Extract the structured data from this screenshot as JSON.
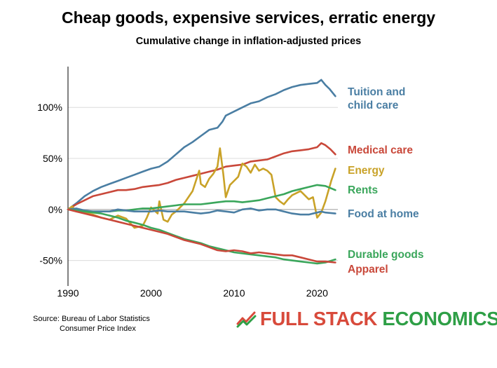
{
  "chart_data": {
    "type": "line",
    "title": "Cheap goods, expensive services, erratic energy",
    "subtitle": "Cumulative change in inflation-adjusted prices",
    "xlabel": "",
    "ylabel": "",
    "xlim": [
      1990,
      2022.5
    ],
    "ylim": [
      -75,
      140
    ],
    "x_ticks": [
      1990,
      2000,
      2010,
      2020
    ],
    "x_tick_labels": [
      "1990",
      "2000",
      "2010",
      "2020"
    ],
    "y_ticks": [
      -50,
      0,
      50,
      100
    ],
    "y_tick_labels": [
      "-50%",
      "0%",
      "50%",
      "100%"
    ],
    "grid": "horizontal",
    "legend": "labels at right end of lines",
    "series": [
      {
        "name": "Tuition and child care",
        "label_lines": [
          "Tuition and",
          "child care"
        ],
        "color": "#4a7ea3",
        "points": [
          [
            1990,
            0
          ],
          [
            1991,
            6
          ],
          [
            1992,
            13
          ],
          [
            1993,
            18
          ],
          [
            1994,
            22
          ],
          [
            1995,
            25
          ],
          [
            1996,
            28
          ],
          [
            1997,
            31
          ],
          [
            1998,
            34
          ],
          [
            1999,
            37
          ],
          [
            2000,
            40
          ],
          [
            2001,
            42
          ],
          [
            2002,
            47
          ],
          [
            2003,
            54
          ],
          [
            2004,
            61
          ],
          [
            2005,
            66
          ],
          [
            2006,
            72
          ],
          [
            2007,
            78
          ],
          [
            2008,
            80
          ],
          [
            2008.6,
            86
          ],
          [
            2009,
            92
          ],
          [
            2010,
            96
          ],
          [
            2011,
            100
          ],
          [
            2012,
            104
          ],
          [
            2013,
            106
          ],
          [
            2014,
            110
          ],
          [
            2015,
            113
          ],
          [
            2016,
            117
          ],
          [
            2017,
            120
          ],
          [
            2018,
            122
          ],
          [
            2019,
            123
          ],
          [
            2020,
            124
          ],
          [
            2020.5,
            127
          ],
          [
            2021,
            122
          ],
          [
            2021.5,
            118
          ],
          [
            2022.2,
            111
          ]
        ]
      },
      {
        "name": "Medical care",
        "label_lines": [
          "Medical care"
        ],
        "color": "#c9483a",
        "points": [
          [
            1990,
            0
          ],
          [
            1991,
            5
          ],
          [
            1992,
            9
          ],
          [
            1993,
            13
          ],
          [
            1994,
            15
          ],
          [
            1995,
            17
          ],
          [
            1996,
            19
          ],
          [
            1997,
            19
          ],
          [
            1998,
            20
          ],
          [
            1999,
            22
          ],
          [
            2000,
            23
          ],
          [
            2001,
            24
          ],
          [
            2002,
            26
          ],
          [
            2003,
            29
          ],
          [
            2004,
            31
          ],
          [
            2005,
            33
          ],
          [
            2006,
            35
          ],
          [
            2007,
            37
          ],
          [
            2008,
            39
          ],
          [
            2009,
            42
          ],
          [
            2010,
            43
          ],
          [
            2011,
            44
          ],
          [
            2012,
            47
          ],
          [
            2013,
            48
          ],
          [
            2014,
            49
          ],
          [
            2015,
            52
          ],
          [
            2016,
            55
          ],
          [
            2017,
            57
          ],
          [
            2018,
            58
          ],
          [
            2019,
            59
          ],
          [
            2020,
            61
          ],
          [
            2020.5,
            65
          ],
          [
            2021,
            63
          ],
          [
            2021.6,
            59
          ],
          [
            2022.2,
            54
          ]
        ]
      },
      {
        "name": "Energy",
        "label_lines": [
          "Energy"
        ],
        "color": "#c9a228",
        "points": [
          [
            1990,
            0
          ],
          [
            1990.5,
            3
          ],
          [
            1991,
            -2
          ],
          [
            1992,
            -3
          ],
          [
            1993,
            -5
          ],
          [
            1994,
            -8
          ],
          [
            1995,
            -10
          ],
          [
            1996,
            -6
          ],
          [
            1997,
            -9
          ],
          [
            1998,
            -18
          ],
          [
            1999,
            -16
          ],
          [
            1999.5,
            -8
          ],
          [
            2000,
            2
          ],
          [
            2000.8,
            -4
          ],
          [
            2001,
            8
          ],
          [
            2001.5,
            -10
          ],
          [
            2002,
            -12
          ],
          [
            2002.5,
            -5
          ],
          [
            2003,
            -2
          ],
          [
            2003.5,
            2
          ],
          [
            2004,
            6
          ],
          [
            2005,
            18
          ],
          [
            2005.8,
            38
          ],
          [
            2006,
            25
          ],
          [
            2006.5,
            22
          ],
          [
            2007,
            30
          ],
          [
            2007.5,
            35
          ],
          [
            2008,
            42
          ],
          [
            2008.3,
            60
          ],
          [
            2008.7,
            35
          ],
          [
            2009,
            12
          ],
          [
            2009.5,
            24
          ],
          [
            2010,
            28
          ],
          [
            2010.5,
            32
          ],
          [
            2011,
            45
          ],
          [
            2011.5,
            42
          ],
          [
            2012,
            36
          ],
          [
            2012.5,
            44
          ],
          [
            2013,
            38
          ],
          [
            2013.5,
            40
          ],
          [
            2014,
            38
          ],
          [
            2014.5,
            34
          ],
          [
            2015,
            12
          ],
          [
            2015.5,
            8
          ],
          [
            2016,
            5
          ],
          [
            2016.5,
            10
          ],
          [
            2017,
            14
          ],
          [
            2018,
            18
          ],
          [
            2019,
            10
          ],
          [
            2019.5,
            12
          ],
          [
            2020,
            -8
          ],
          [
            2020.5,
            -3
          ],
          [
            2021,
            8
          ],
          [
            2021.7,
            28
          ],
          [
            2022.2,
            40
          ]
        ]
      },
      {
        "name": "Rents",
        "label_lines": [
          "Rents"
        ],
        "color": "#3aa65b",
        "points": [
          [
            1990,
            0
          ],
          [
            1991,
            -1
          ],
          [
            1992,
            -2
          ],
          [
            1993,
            -2
          ],
          [
            1994,
            -2
          ],
          [
            1995,
            -2
          ],
          [
            1996,
            -1
          ],
          [
            1997,
            -1
          ],
          [
            1998,
            0
          ],
          [
            1999,
            1
          ],
          [
            2000,
            1
          ],
          [
            2001,
            2
          ],
          [
            2002,
            3
          ],
          [
            2003,
            4
          ],
          [
            2004,
            5
          ],
          [
            2005,
            5
          ],
          [
            2006,
            5
          ],
          [
            2007,
            6
          ],
          [
            2008,
            7
          ],
          [
            2009,
            8
          ],
          [
            2010,
            8
          ],
          [
            2011,
            7
          ],
          [
            2012,
            8
          ],
          [
            2013,
            9
          ],
          [
            2014,
            11
          ],
          [
            2015,
            13
          ],
          [
            2016,
            15
          ],
          [
            2017,
            18
          ],
          [
            2018,
            20
          ],
          [
            2019,
            22
          ],
          [
            2020,
            24
          ],
          [
            2021,
            23
          ],
          [
            2022.2,
            19
          ]
        ]
      },
      {
        "name": "Food at home",
        "label_lines": [
          "Food at home"
        ],
        "color": "#4a7ea3",
        "points": [
          [
            1990,
            0
          ],
          [
            1991,
            1
          ],
          [
            1992,
            -1
          ],
          [
            1993,
            -2
          ],
          [
            1994,
            -2
          ],
          [
            1995,
            -2
          ],
          [
            1996,
            0
          ],
          [
            1997,
            -1
          ],
          [
            1998,
            -2
          ],
          [
            1999,
            -2
          ],
          [
            2000,
            -2
          ],
          [
            2001,
            -1
          ],
          [
            2002,
            -2
          ],
          [
            2003,
            -2
          ],
          [
            2004,
            -2
          ],
          [
            2005,
            -3
          ],
          [
            2006,
            -4
          ],
          [
            2007,
            -3
          ],
          [
            2008,
            -1
          ],
          [
            2009,
            -2
          ],
          [
            2010,
            -3
          ],
          [
            2011,
            0
          ],
          [
            2012,
            1
          ],
          [
            2013,
            -1
          ],
          [
            2014,
            0
          ],
          [
            2015,
            0
          ],
          [
            2016,
            -2
          ],
          [
            2017,
            -4
          ],
          [
            2018,
            -5
          ],
          [
            2019,
            -5
          ],
          [
            2020,
            -3
          ],
          [
            2020.5,
            -2
          ],
          [
            2021,
            -3
          ],
          [
            2022.2,
            -4
          ]
        ]
      },
      {
        "name": "Durable goods",
        "label_lines": [
          "Durable goods"
        ],
        "color": "#3aa65b",
        "points": [
          [
            1990,
            0
          ],
          [
            1991,
            -1
          ],
          [
            1992,
            -2
          ],
          [
            1993,
            -3
          ],
          [
            1994,
            -4
          ],
          [
            1995,
            -6
          ],
          [
            1996,
            -8
          ],
          [
            1997,
            -11
          ],
          [
            1998,
            -13
          ],
          [
            1999,
            -15
          ],
          [
            2000,
            -18
          ],
          [
            2001,
            -20
          ],
          [
            2002,
            -23
          ],
          [
            2003,
            -26
          ],
          [
            2004,
            -29
          ],
          [
            2005,
            -31
          ],
          [
            2006,
            -33
          ],
          [
            2007,
            -36
          ],
          [
            2008,
            -38
          ],
          [
            2009,
            -40
          ],
          [
            2010,
            -42
          ],
          [
            2011,
            -43
          ],
          [
            2012,
            -44
          ],
          [
            2013,
            -45
          ],
          [
            2014,
            -46
          ],
          [
            2015,
            -47
          ],
          [
            2016,
            -49
          ],
          [
            2017,
            -50
          ],
          [
            2018,
            -51
          ],
          [
            2019,
            -52
          ],
          [
            2020,
            -53
          ],
          [
            2021,
            -52
          ],
          [
            2022.2,
            -49
          ]
        ]
      },
      {
        "name": "Apparel",
        "label_lines": [
          "Apparel"
        ],
        "color": "#c9483a",
        "points": [
          [
            1990,
            0
          ],
          [
            1991,
            -2
          ],
          [
            1992,
            -4
          ],
          [
            1993,
            -6
          ],
          [
            1994,
            -8
          ],
          [
            1995,
            -10
          ],
          [
            1996,
            -12
          ],
          [
            1997,
            -14
          ],
          [
            1998,
            -16
          ],
          [
            1999,
            -18
          ],
          [
            2000,
            -20
          ],
          [
            2001,
            -22
          ],
          [
            2002,
            -24
          ],
          [
            2003,
            -27
          ],
          [
            2004,
            -30
          ],
          [
            2005,
            -32
          ],
          [
            2006,
            -34
          ],
          [
            2007,
            -37
          ],
          [
            2008,
            -40
          ],
          [
            2009,
            -41
          ],
          [
            2010,
            -40
          ],
          [
            2011,
            -41
          ],
          [
            2012,
            -43
          ],
          [
            2013,
            -42
          ],
          [
            2014,
            -43
          ],
          [
            2015,
            -44
          ],
          [
            2016,
            -45
          ],
          [
            2017,
            -45
          ],
          [
            2018,
            -47
          ],
          [
            2019,
            -49
          ],
          [
            2020,
            -51
          ],
          [
            2021,
            -51
          ],
          [
            2022.2,
            -52
          ]
        ]
      }
    ]
  },
  "source": {
    "line1": "Source: Bureau of Labor Statistics",
    "line2": "Consumer Price Index"
  },
  "logo": {
    "word1": "FULL STACK",
    "word2": "ECONOMICS",
    "icon": "trend-check-icon",
    "colors": {
      "red": "#d84a3b",
      "green": "#2e9f46"
    }
  }
}
